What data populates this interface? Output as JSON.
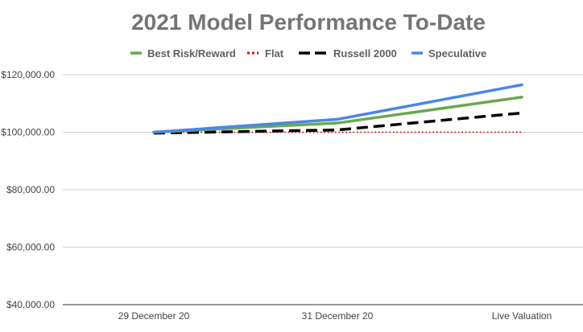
{
  "chart_data": {
    "type": "line",
    "title": "2021 Model Performance To-Date",
    "xlabel": "",
    "ylabel": "",
    "categories": [
      "29 December 20",
      "31 December 20",
      "Live Valuation"
    ],
    "ylim": [
      40000,
      120000
    ],
    "yticks": [
      40000,
      60000,
      80000,
      100000,
      120000
    ],
    "ytick_labels": [
      "$40,000.00",
      "$60,000.00",
      "$80,000.00",
      "$100,000.00",
      "$120,000.00"
    ],
    "grid": true,
    "legend": "top",
    "series": [
      {
        "name": "Best Risk/Reward",
        "values": [
          100000,
          103200,
          112200
        ],
        "color": "#6aa84f",
        "dash": "solid"
      },
      {
        "name": "Flat",
        "values": [
          100000,
          100000,
          100000
        ],
        "color": "#e00000",
        "dash": "dotted"
      },
      {
        "name": "Russell 2000",
        "values": [
          99700,
          100800,
          106700
        ],
        "color": "#000000",
        "dash": "dashed"
      },
      {
        "name": "Speculative",
        "values": [
          100000,
          104500,
          116500
        ],
        "color": "#4a86e8",
        "dash": "solid"
      }
    ]
  }
}
